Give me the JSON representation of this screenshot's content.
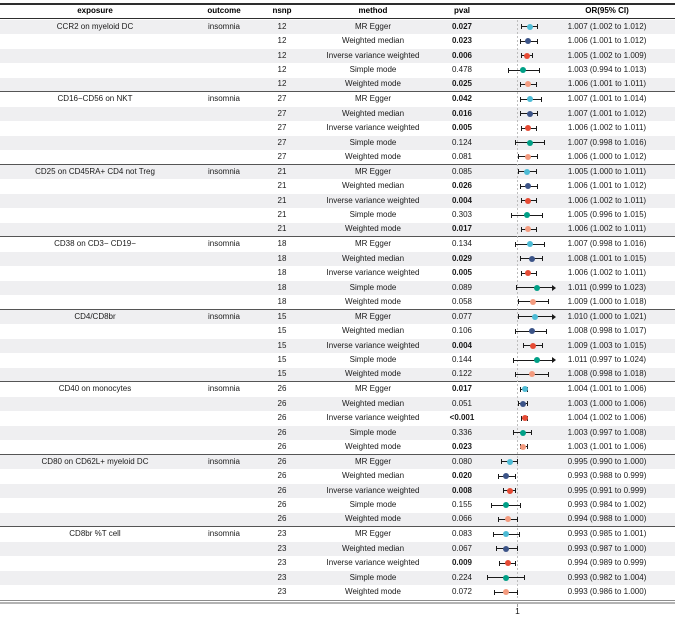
{
  "header": {
    "exposure": "exposure",
    "outcome": "outcome",
    "nsnp": "nsnp",
    "method": "method",
    "pval": "pval",
    "or_ci": "OR(95% CI)"
  },
  "colors": {
    "mr_egger": "#4DBBD5",
    "weighted_median": "#3C5488",
    "inverse_variance_weighted": "#E64B35",
    "simple_mode": "#00A087",
    "weighted_mode": "#F39B7F",
    "row_shade": "#efeff1",
    "reference_line": "#bdbdbd"
  },
  "chart_data": {
    "type": "scatter",
    "subtype": "forest-plot",
    "title": "",
    "xlabel": "",
    "xlim": [
      0.98,
      1.02
    ],
    "ref_line": 1.0,
    "x_tick_label": "1",
    "grid": false,
    "methods": [
      "MR Egger",
      "Weighted median",
      "Inverse variance weighted",
      "Simple mode",
      "Weighted mode"
    ],
    "method_colors": [
      "#4DBBD5",
      "#3C5488",
      "#E64B35",
      "#00A087",
      "#F39B7F"
    ],
    "groups": [
      {
        "exposure": "CCR2 on myeloid DC",
        "outcome": "insomnia",
        "nsnp": "12",
        "rows": [
          {
            "method": "MR Egger",
            "pval": "0.027",
            "sig": true,
            "or": 1.007,
            "lo": 1.002,
            "hi": 1.012,
            "or_text": "1.007 (1.002 to 1.012)"
          },
          {
            "method": "Weighted median",
            "pval": "0.023",
            "sig": true,
            "or": 1.006,
            "lo": 1.001,
            "hi": 1.012,
            "or_text": "1.006 (1.001 to 1.012)"
          },
          {
            "method": "Inverse variance weighted",
            "pval": "0.006",
            "sig": true,
            "or": 1.005,
            "lo": 1.002,
            "hi": 1.009,
            "or_text": "1.005 (1.002 to 1.009)"
          },
          {
            "method": "Simple mode",
            "pval": "0.478",
            "sig": false,
            "or": 1.003,
            "lo": 0.994,
            "hi": 1.013,
            "or_text": "1.003 (0.994 to 1.013)"
          },
          {
            "method": "Weighted mode",
            "pval": "0.025",
            "sig": true,
            "or": 1.006,
            "lo": 1.001,
            "hi": 1.011,
            "or_text": "1.006 (1.001 to 1.011)"
          }
        ]
      },
      {
        "exposure": "CD16−CD56 on NKT",
        "outcome": "insomnia",
        "nsnp": "27",
        "rows": [
          {
            "method": "MR Egger",
            "pval": "0.042",
            "sig": true,
            "or": 1.007,
            "lo": 1.001,
            "hi": 1.014,
            "or_text": "1.007 (1.001 to 1.014)"
          },
          {
            "method": "Weighted median",
            "pval": "0.016",
            "sig": true,
            "or": 1.007,
            "lo": 1.001,
            "hi": 1.012,
            "or_text": "1.007 (1.001 to 1.012)"
          },
          {
            "method": "Inverse variance weighted",
            "pval": "0.005",
            "sig": true,
            "or": 1.006,
            "lo": 1.002,
            "hi": 1.011,
            "or_text": "1.006 (1.002 to 1.011)"
          },
          {
            "method": "Simple mode",
            "pval": "0.124",
            "sig": false,
            "or": 1.007,
            "lo": 0.998,
            "hi": 1.016,
            "or_text": "1.007 (0.998 to 1.016)"
          },
          {
            "method": "Weighted mode",
            "pval": "0.081",
            "sig": false,
            "or": 1.006,
            "lo": 1.0,
            "hi": 1.012,
            "or_text": "1.006 (1.000 to 1.012)"
          }
        ]
      },
      {
        "exposure": "CD25 on CD45RA+ CD4 not Treg",
        "outcome": "insomnia",
        "nsnp": "21",
        "rows": [
          {
            "method": "MR Egger",
            "pval": "0.085",
            "sig": false,
            "or": 1.005,
            "lo": 1.0,
            "hi": 1.011,
            "or_text": "1.005 (1.000 to 1.011)"
          },
          {
            "method": "Weighted median",
            "pval": "0.026",
            "sig": true,
            "or": 1.006,
            "lo": 1.001,
            "hi": 1.012,
            "or_text": "1.006 (1.001 to 1.012)"
          },
          {
            "method": "Inverse variance weighted",
            "pval": "0.004",
            "sig": true,
            "or": 1.006,
            "lo": 1.002,
            "hi": 1.011,
            "or_text": "1.006 (1.002 to 1.011)"
          },
          {
            "method": "Simple mode",
            "pval": "0.303",
            "sig": false,
            "or": 1.005,
            "lo": 0.996,
            "hi": 1.015,
            "or_text": "1.005 (0.996 to 1.015)"
          },
          {
            "method": "Weighted mode",
            "pval": "0.017",
            "sig": true,
            "or": 1.006,
            "lo": 1.002,
            "hi": 1.011,
            "or_text": "1.006 (1.002 to 1.011)"
          }
        ]
      },
      {
        "exposure": "CD38 on CD3− CD19−",
        "outcome": "insomnia",
        "nsnp": "18",
        "rows": [
          {
            "method": "MR Egger",
            "pval": "0.134",
            "sig": false,
            "or": 1.007,
            "lo": 0.998,
            "hi": 1.016,
            "or_text": "1.007 (0.998 to 1.016)"
          },
          {
            "method": "Weighted median",
            "pval": "0.029",
            "sig": true,
            "or": 1.008,
            "lo": 1.001,
            "hi": 1.015,
            "or_text": "1.008 (1.001 to 1.015)"
          },
          {
            "method": "Inverse variance weighted",
            "pval": "0.005",
            "sig": true,
            "or": 1.006,
            "lo": 1.002,
            "hi": 1.011,
            "or_text": "1.006 (1.002 to 1.011)"
          },
          {
            "method": "Simple mode",
            "pval": "0.089",
            "sig": false,
            "or": 1.011,
            "lo": 0.999,
            "hi": 1.023,
            "or_text": "1.011 (0.999 to 1.023)"
          },
          {
            "method": "Weighted mode",
            "pval": "0.058",
            "sig": false,
            "or": 1.009,
            "lo": 1.0,
            "hi": 1.018,
            "or_text": "1.009 (1.000 to 1.018)"
          }
        ]
      },
      {
        "exposure": "CD4/CD8br",
        "outcome": "insomnia",
        "nsnp": "15",
        "rows": [
          {
            "method": "MR Egger",
            "pval": "0.077",
            "sig": false,
            "or": 1.01,
            "lo": 1.0,
            "hi": 1.021,
            "or_text": "1.010 (1.000 to 1.021)"
          },
          {
            "method": "Weighted median",
            "pval": "0.106",
            "sig": false,
            "or": 1.008,
            "lo": 0.998,
            "hi": 1.017,
            "or_text": "1.008 (0.998 to 1.017)"
          },
          {
            "method": "Inverse variance weighted",
            "pval": "0.004",
            "sig": true,
            "or": 1.009,
            "lo": 1.003,
            "hi": 1.015,
            "or_text": "1.009 (1.003 to 1.015)"
          },
          {
            "method": "Simple mode",
            "pval": "0.144",
            "sig": false,
            "or": 1.011,
            "lo": 0.997,
            "hi": 1.024,
            "or_text": "1.011 (0.997 to 1.024)"
          },
          {
            "method": "Weighted mode",
            "pval": "0.122",
            "sig": false,
            "or": 1.008,
            "lo": 0.998,
            "hi": 1.018,
            "or_text": "1.008 (0.998 to 1.018)"
          }
        ]
      },
      {
        "exposure": "CD40 on monocytes",
        "outcome": "insomnia",
        "nsnp": "26",
        "rows": [
          {
            "method": "MR Egger",
            "pval": "0.017",
            "sig": true,
            "or": 1.004,
            "lo": 1.001,
            "hi": 1.006,
            "or_text": "1.004 (1.001 to 1.006)"
          },
          {
            "method": "Weighted median",
            "pval": "0.051",
            "sig": false,
            "or": 1.003,
            "lo": 1.0,
            "hi": 1.006,
            "or_text": "1.003 (1.000 to 1.006)"
          },
          {
            "method": "Inverse variance weighted",
            "pval": "<0.001",
            "sig": true,
            "or": 1.004,
            "lo": 1.002,
            "hi": 1.006,
            "or_text": "1.004 (1.002 to 1.006)"
          },
          {
            "method": "Simple mode",
            "pval": "0.336",
            "sig": false,
            "or": 1.003,
            "lo": 0.997,
            "hi": 1.008,
            "or_text": "1.003 (0.997 to 1.008)"
          },
          {
            "method": "Weighted mode",
            "pval": "0.023",
            "sig": true,
            "or": 1.003,
            "lo": 1.001,
            "hi": 1.006,
            "or_text": "1.003 (1.001 to 1.006)"
          }
        ]
      },
      {
        "exposure": "CD80 on CD62L+ myeloid DC",
        "outcome": "insomnia",
        "nsnp": "26",
        "rows": [
          {
            "method": "MR Egger",
            "pval": "0.080",
            "sig": false,
            "or": 0.995,
            "lo": 0.99,
            "hi": 1.0,
            "or_text": "0.995 (0.990 to 1.000)"
          },
          {
            "method": "Weighted median",
            "pval": "0.020",
            "sig": true,
            "or": 0.993,
            "lo": 0.988,
            "hi": 0.999,
            "or_text": "0.993 (0.988 to 0.999)"
          },
          {
            "method": "Inverse variance weighted",
            "pval": "0.008",
            "sig": true,
            "or": 0.995,
            "lo": 0.991,
            "hi": 0.999,
            "or_text": "0.995 (0.991 to 0.999)"
          },
          {
            "method": "Simple mode",
            "pval": "0.155",
            "sig": false,
            "or": 0.993,
            "lo": 0.984,
            "hi": 1.002,
            "or_text": "0.993 (0.984 to 1.002)"
          },
          {
            "method": "Weighted mode",
            "pval": "0.066",
            "sig": false,
            "or": 0.994,
            "lo": 0.988,
            "hi": 1.0,
            "or_text": "0.994 (0.988 to 1.000)"
          }
        ]
      },
      {
        "exposure": "CD8br %T cell",
        "outcome": "insomnia",
        "nsnp": "23",
        "rows": [
          {
            "method": "MR Egger",
            "pval": "0.083",
            "sig": false,
            "or": 0.993,
            "lo": 0.985,
            "hi": 1.001,
            "or_text": "0.993 (0.985 to 1.001)"
          },
          {
            "method": "Weighted median",
            "pval": "0.067",
            "sig": false,
            "or": 0.993,
            "lo": 0.987,
            "hi": 1.0,
            "or_text": "0.993 (0.987 to 1.000)"
          },
          {
            "method": "Inverse variance weighted",
            "pval": "0.009",
            "sig": true,
            "or": 0.994,
            "lo": 0.989,
            "hi": 0.999,
            "or_text": "0.994 (0.989 to 0.999)"
          },
          {
            "method": "Simple mode",
            "pval": "0.224",
            "sig": false,
            "or": 0.993,
            "lo": 0.982,
            "hi": 1.004,
            "or_text": "0.993 (0.982 to 1.004)"
          },
          {
            "method": "Weighted mode",
            "pval": "0.072",
            "sig": false,
            "or": 0.993,
            "lo": 0.986,
            "hi": 1.0,
            "or_text": "0.993 (0.986 to 1.000)"
          }
        ]
      }
    ]
  }
}
